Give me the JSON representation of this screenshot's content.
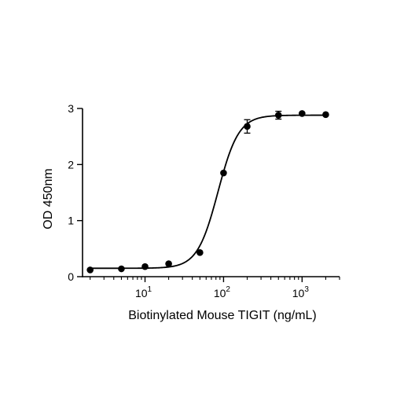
{
  "chart_data": {
    "type": "scatter",
    "xlabel": "Biotinylated Mouse TIGIT (ng/mL)",
    "ylabel": "OD 450nm",
    "xscale": "log",
    "xlim": [
      1.6,
      3000
    ],
    "ylim": [
      0,
      3
    ],
    "yticks": [
      "0",
      "1",
      "2",
      "3"
    ],
    "xticks": [
      {
        "value": 10,
        "base": "10",
        "exp": "1"
      },
      {
        "value": 100,
        "base": "10",
        "exp": "2"
      },
      {
        "value": 1000,
        "base": "10",
        "exp": "3"
      }
    ],
    "grid": false,
    "points": [
      {
        "x": 2,
        "y": 0.12,
        "err": 0
      },
      {
        "x": 5,
        "y": 0.14,
        "err": 0
      },
      {
        "x": 10,
        "y": 0.18,
        "err": 0
      },
      {
        "x": 20,
        "y": 0.23,
        "err": 0
      },
      {
        "x": 50,
        "y": 0.43,
        "err": 0
      },
      {
        "x": 100,
        "y": 1.85,
        "err": 0
      },
      {
        "x": 200,
        "y": 2.68,
        "err": 0.12
      },
      {
        "x": 500,
        "y": 2.88,
        "err": 0.07
      },
      {
        "x": 1000,
        "y": 2.91,
        "err": 0
      },
      {
        "x": 2000,
        "y": 2.89,
        "err": 0
      }
    ],
    "fit": {
      "bottom": 0.15,
      "top": 2.88,
      "ec50": 85,
      "hill": 3.3
    }
  }
}
